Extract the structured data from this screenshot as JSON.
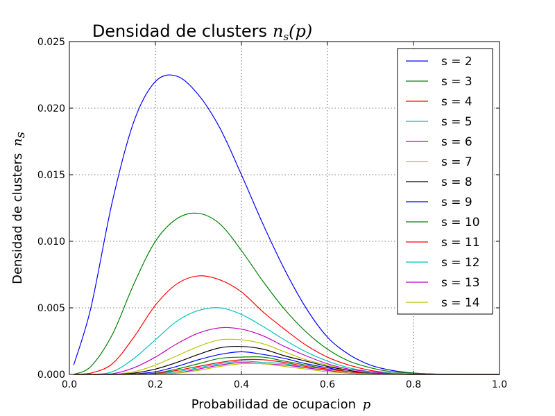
{
  "chart_data": {
    "type": "line",
    "title": "Densidad de clusters",
    "title_math": "n_s(p)",
    "xlabel": "Probabilidad de ocupacion",
    "xlabel_math": "p",
    "ylabel": "Densidad de clusters",
    "ylabel_math": "n_s",
    "xlim": [
      0.0,
      1.0
    ],
    "ylim": [
      0.0,
      0.025
    ],
    "xticks": [
      "0.0",
      "0.2",
      "0.4",
      "0.6",
      "0.8",
      "1.0"
    ],
    "yticks": [
      "0.000",
      "0.005",
      "0.010",
      "0.015",
      "0.020",
      "0.025"
    ],
    "grid": true,
    "legend_position": "top-right",
    "x": [
      0.01,
      0.05,
      0.1,
      0.15,
      0.2,
      0.25,
      0.3,
      0.35,
      0.4,
      0.45,
      0.5,
      0.55,
      0.6,
      0.65,
      0.7,
      0.75,
      0.8,
      0.85,
      0.9,
      0.95,
      1.0
    ],
    "series": [
      {
        "name": "s = 2",
        "color": "#0000ff",
        "values": [
          0.0007,
          0.005,
          0.013,
          0.019,
          0.022,
          0.0224,
          0.021,
          0.0185,
          0.015,
          0.0113,
          0.0079,
          0.005,
          0.0028,
          0.0015,
          0.0007,
          0.0003,
          0.0001,
          3e-05,
          1e-05,
          0,
          0
        ]
      },
      {
        "name": "s = 3",
        "color": "#008000",
        "values": [
          0.0,
          0.0006,
          0.003,
          0.0068,
          0.01,
          0.0117,
          0.0121,
          0.0113,
          0.0093,
          0.007,
          0.0049,
          0.0032,
          0.0019,
          0.001,
          0.0005,
          0.0002,
          0.0001,
          2e-05,
          0,
          0,
          0
        ]
      },
      {
        "name": "s = 4",
        "color": "#ff0000",
        "values": [
          0,
          0.0001,
          0.0008,
          0.0028,
          0.0052,
          0.0068,
          0.0074,
          0.0071,
          0.0062,
          0.0047,
          0.0034,
          0.0022,
          0.0013,
          0.0007,
          0.0003,
          0.0001,
          3e-05,
          0,
          0,
          0,
          0
        ]
      },
      {
        "name": "s = 5",
        "color": "#00bfbf",
        "values": [
          0,
          0,
          0.0002,
          0.0012,
          0.0026,
          0.004,
          0.0048,
          0.005,
          0.0045,
          0.0036,
          0.0026,
          0.0017,
          0.001,
          0.0005,
          0.0002,
          0.0001,
          2e-05,
          0,
          0,
          0,
          0
        ]
      },
      {
        "name": "s = 6",
        "color": "#bf00bf",
        "values": [
          0,
          0,
          5e-05,
          0.0005,
          0.0013,
          0.0023,
          0.0031,
          0.0035,
          0.0034,
          0.0029,
          0.0021,
          0.0014,
          0.0008,
          0.0004,
          0.0002,
          5e-05,
          0,
          0,
          0,
          0,
          0
        ]
      },
      {
        "name": "s = 7",
        "color": "#bfbf00",
        "values": [
          0,
          0,
          1e-05,
          0.0002,
          0.0007,
          0.0014,
          0.0021,
          0.0026,
          0.0026,
          0.0023,
          0.0017,
          0.0011,
          0.0007,
          0.0003,
          0.0001,
          4e-05,
          0,
          0,
          0,
          0,
          0
        ]
      },
      {
        "name": "s = 8",
        "color": "#000000",
        "values": [
          0,
          0,
          0,
          0.0001,
          0.0004,
          0.0009,
          0.0015,
          0.002,
          0.0021,
          0.0019,
          0.0014,
          0.001,
          0.0006,
          0.0003,
          0.0001,
          3e-05,
          0,
          0,
          0,
          0,
          0
        ]
      },
      {
        "name": "s = 9",
        "color": "#0000ff",
        "values": [
          0,
          0,
          0,
          4e-05,
          0.0002,
          0.0006,
          0.0011,
          0.0015,
          0.0017,
          0.0015,
          0.0012,
          0.0008,
          0.0005,
          0.0002,
          0.0001,
          2e-05,
          0,
          0,
          0,
          0,
          0
        ]
      },
      {
        "name": "s = 10",
        "color": "#008000",
        "values": [
          0,
          0,
          0,
          2e-05,
          0.0001,
          0.0004,
          0.0008,
          0.0012,
          0.0013,
          0.0013,
          0.001,
          0.0007,
          0.0004,
          0.0002,
          8e-05,
          2e-05,
          0,
          0,
          0,
          0,
          0
        ]
      },
      {
        "name": "s = 11",
        "color": "#ff0000",
        "values": [
          0,
          0,
          0,
          1e-05,
          7e-05,
          0.0003,
          0.0006,
          0.0009,
          0.0011,
          0.0011,
          0.0009,
          0.0006,
          0.0004,
          0.0002,
          6e-05,
          1e-05,
          0,
          0,
          0,
          0,
          0
        ]
      },
      {
        "name": "s = 12",
        "color": "#00bfbf",
        "values": [
          0,
          0,
          0,
          0,
          4e-05,
          0.0002,
          0.0005,
          0.0008,
          0.001,
          0.0009,
          0.0008,
          0.0005,
          0.0003,
          0.0001,
          5e-05,
          1e-05,
          0,
          0,
          0,
          0,
          0
        ]
      },
      {
        "name": "s = 13",
        "color": "#bf00bf",
        "values": [
          0,
          0,
          0,
          0,
          2e-05,
          0.0001,
          0.0004,
          0.0007,
          0.0009,
          0.0008,
          0.0007,
          0.0005,
          0.0003,
          0.0001,
          4e-05,
          1e-05,
          0,
          0,
          0,
          0,
          0
        ]
      },
      {
        "name": "s = 14",
        "color": "#bfbf00",
        "values": [
          0,
          0,
          0,
          0,
          1e-05,
          0.0001,
          0.0003,
          0.0006,
          0.0008,
          0.0008,
          0.0006,
          0.0004,
          0.0002,
          0.0001,
          3e-05,
          0,
          0,
          0,
          0,
          0,
          0
        ]
      }
    ]
  }
}
